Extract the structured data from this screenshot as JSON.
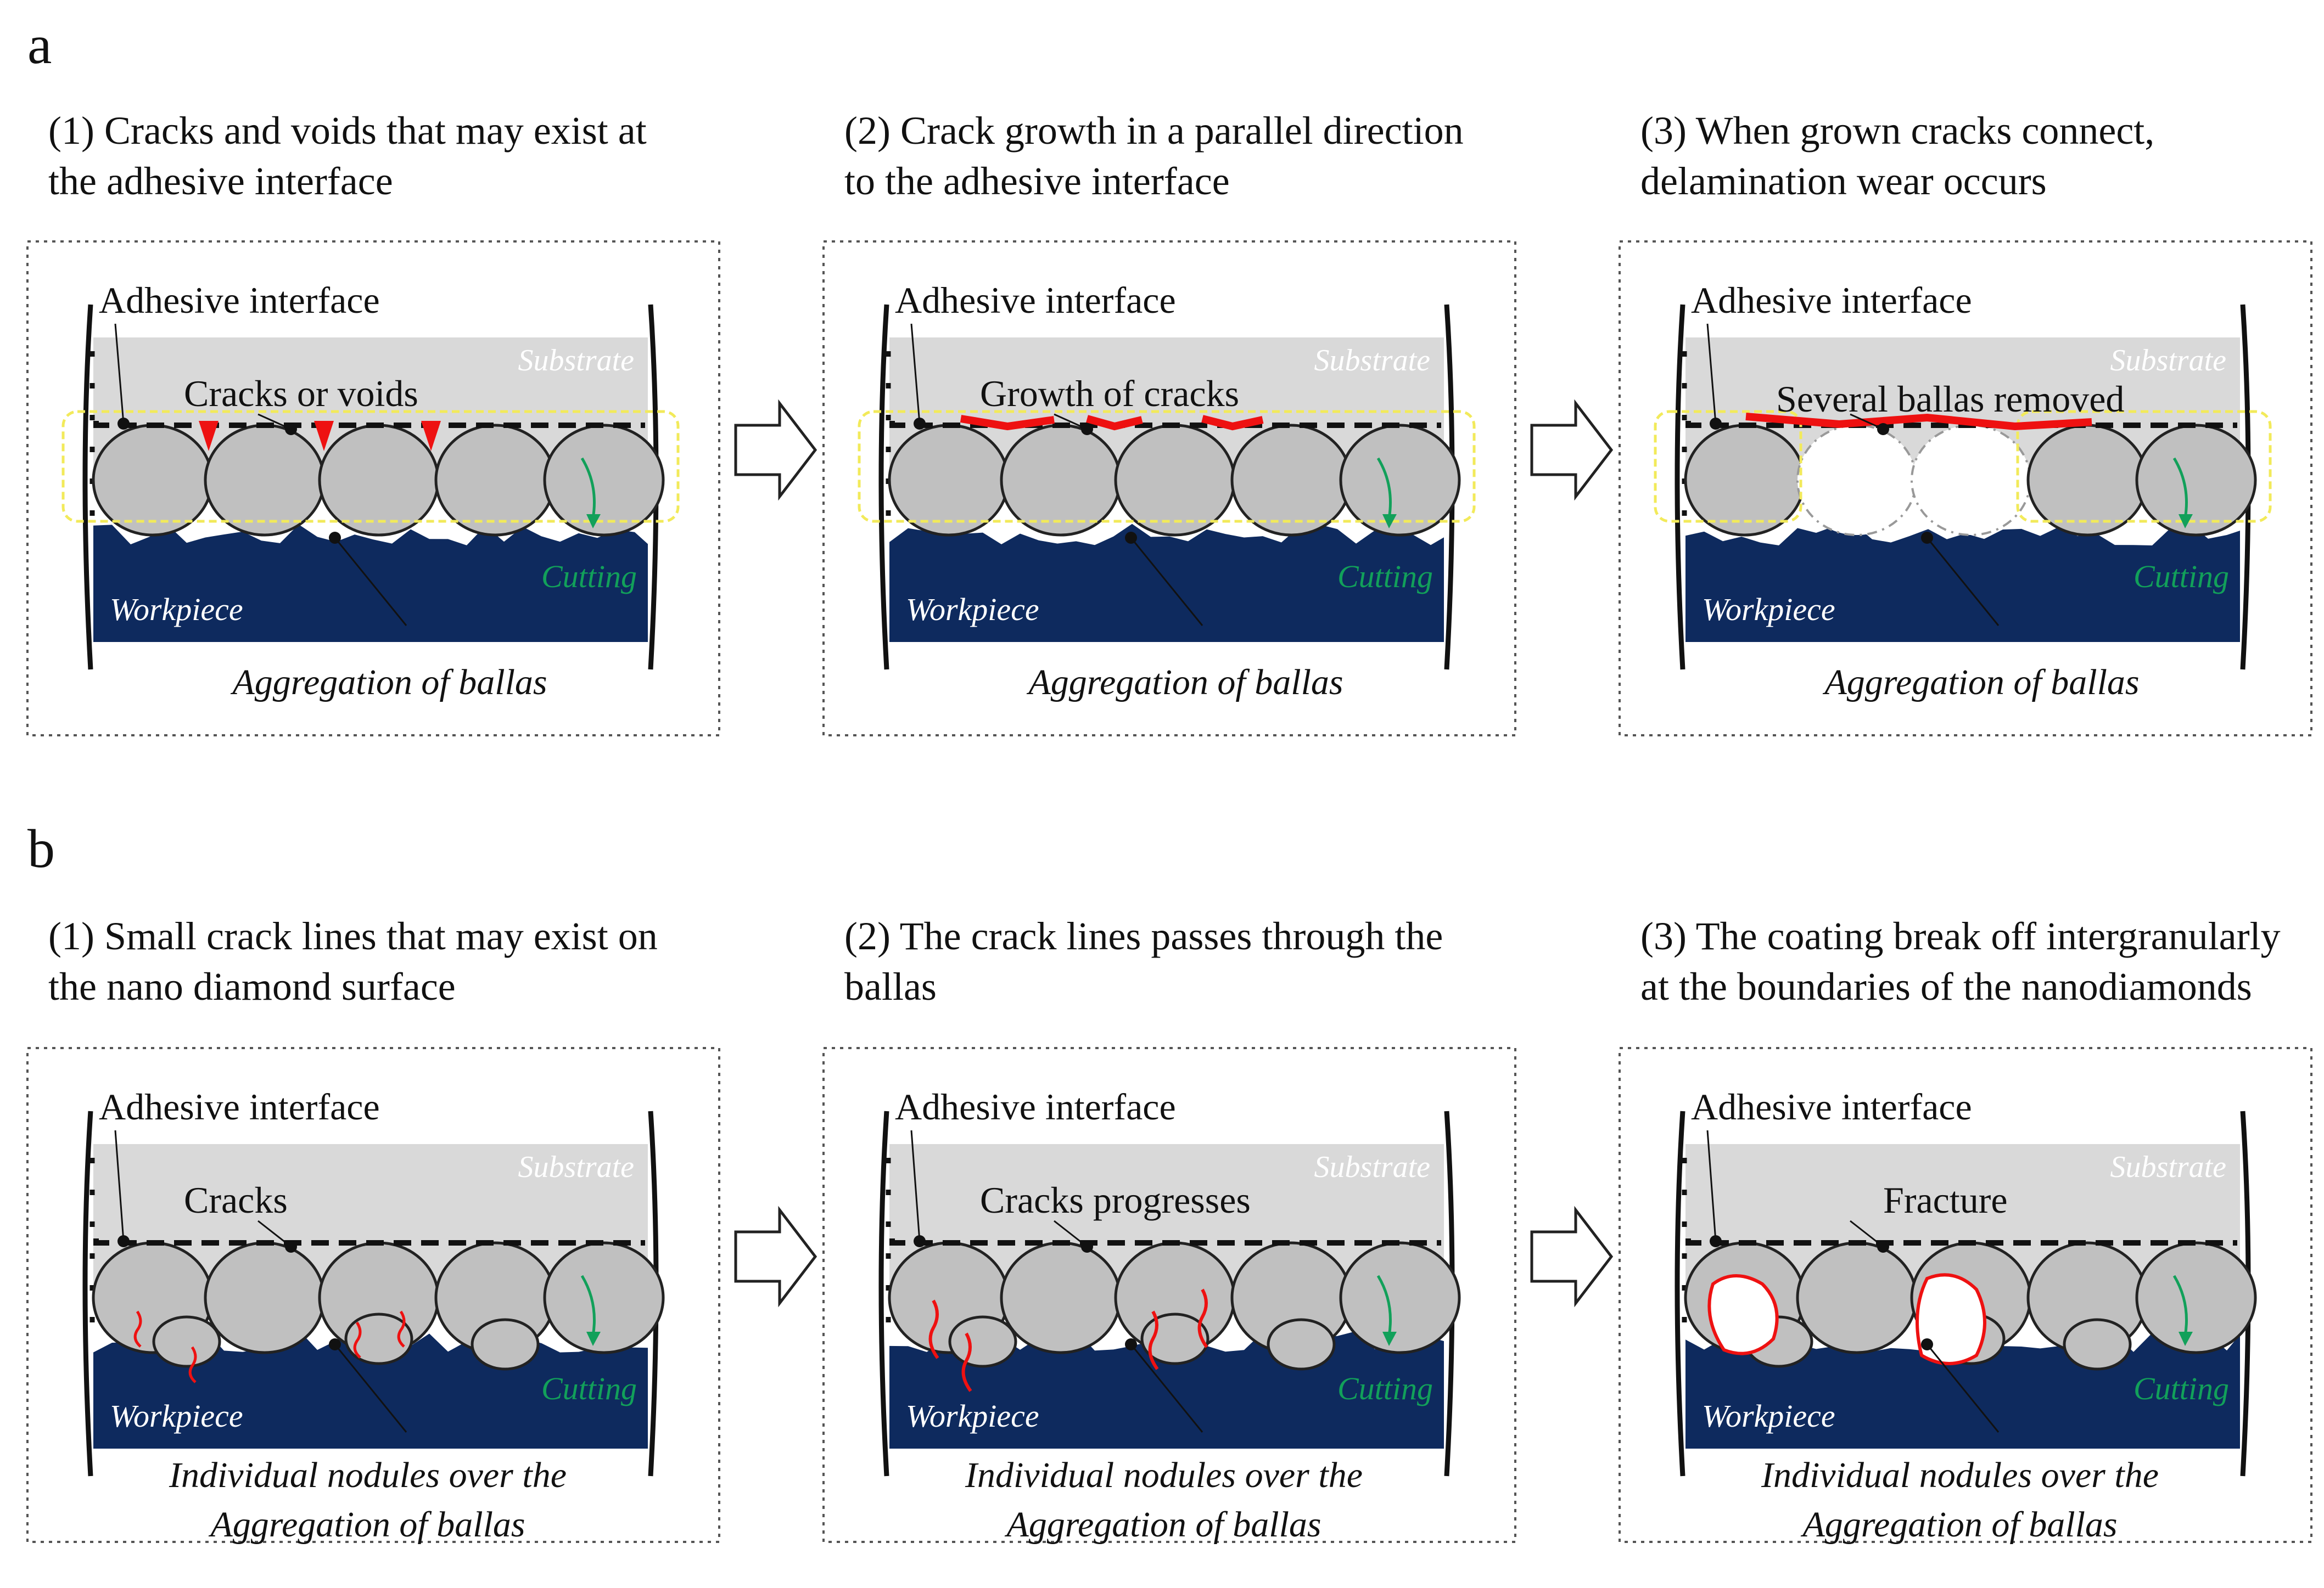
{
  "colors": {
    "substrate": "#d9d9d9",
    "workpiece": "#0e2a5e",
    "ballas": "#c0c0c0",
    "crack": "#ee1111",
    "cutting": "#12a05a",
    "highlight": "#f2ea5a",
    "frame": "#555555"
  },
  "sections": {
    "a": {
      "label": "a",
      "panels": [
        {
          "caption_line1": "(1) Cracks and voids that may exist at",
          "caption_line2": "the adhesive interface",
          "adhesive_label": "Adhesive interface",
          "substrate_label": "Substrate",
          "callout": "Cracks or voids",
          "workpiece_label": "Workpiece",
          "cutting_label": "Cutting",
          "bottom_line1": "Aggregation of ballas",
          "bottom_line2": ""
        },
        {
          "caption_line1": "(2) Crack growth in a parallel direction",
          "caption_line2": "to the adhesive interface",
          "adhesive_label": "Adhesive interface",
          "substrate_label": "Substrate",
          "callout": "Growth of cracks",
          "workpiece_label": "Workpiece",
          "cutting_label": "Cutting",
          "bottom_line1": "Aggregation of ballas",
          "bottom_line2": ""
        },
        {
          "caption_line1": "(3) When grown cracks connect,",
          "caption_line2": "delamination wear occurs",
          "adhesive_label": "Adhesive interface",
          "substrate_label": "Substrate",
          "callout": "Several ballas removed",
          "workpiece_label": "Workpiece",
          "cutting_label": "Cutting",
          "bottom_line1": "Aggregation of ballas",
          "bottom_line2": ""
        }
      ]
    },
    "b": {
      "label": "b",
      "panels": [
        {
          "caption_line1": "(1) Small crack lines that may exist on",
          "caption_line2": "the nano diamond surface",
          "adhesive_label": "Adhesive interface",
          "substrate_label": "Substrate",
          "callout": "Cracks",
          "workpiece_label": "Workpiece",
          "cutting_label": "Cutting",
          "bottom_line1": "Individual nodules over the",
          "bottom_line2": "Aggregation of ballas"
        },
        {
          "caption_line1": "(2) The crack lines passes through the",
          "caption_line2": "ballas",
          "adhesive_label": "Adhesive interface",
          "substrate_label": "Substrate",
          "callout": "Cracks progresses",
          "workpiece_label": "Workpiece",
          "cutting_label": "Cutting",
          "bottom_line1": "Individual nodules over the",
          "bottom_line2": "Aggregation of ballas"
        },
        {
          "caption_line1": "(3) The coating break off intergranularly",
          "caption_line2": "at the boundaries of the nanodiamonds",
          "adhesive_label": "Adhesive interface",
          "substrate_label": "Substrate",
          "callout": "Fracture",
          "workpiece_label": "Workpiece",
          "cutting_label": "Cutting",
          "bottom_line1": "Individual nodules over the",
          "bottom_line2": "Aggregation of ballas"
        }
      ]
    }
  }
}
